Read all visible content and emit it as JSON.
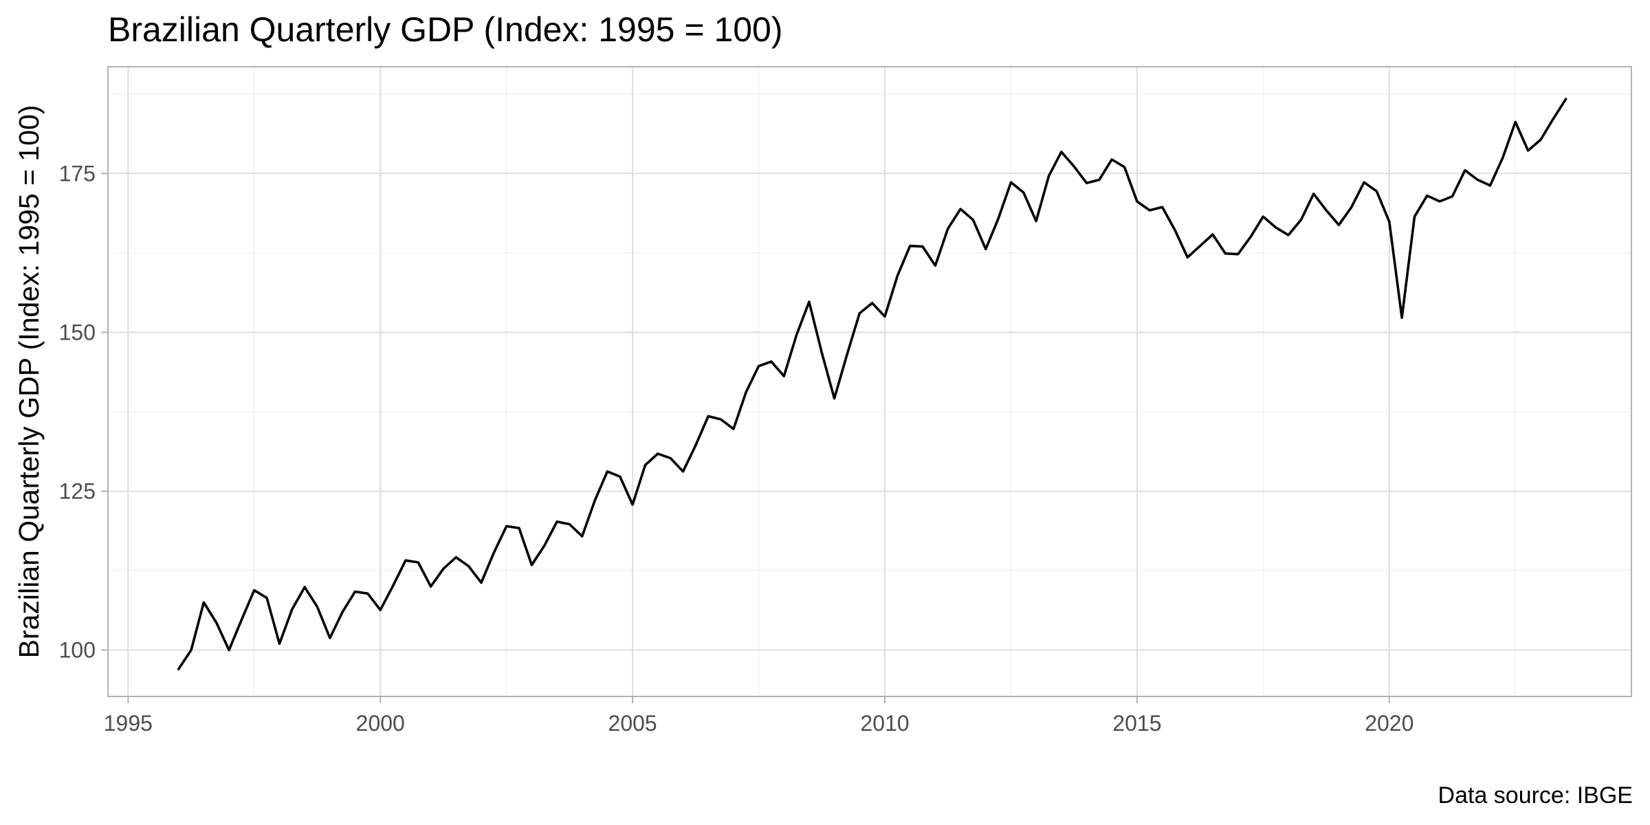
{
  "chart_data": {
    "type": "line",
    "title": "Brazilian Quarterly GDP (Index: 1995 = 100)",
    "xlabel": "",
    "ylabel": "Brazilian Quarterly GDP (Index: 1995 = 100)",
    "caption": "Data source: IBGE",
    "xlim": [
      1994.6,
      2024.8
    ],
    "ylim": [
      92.7,
      191.8
    ],
    "x_ticks": [
      1995,
      2000,
      2005,
      2010,
      2015,
      2020
    ],
    "x_tick_labels": [
      "1995",
      "2000",
      "2005",
      "2010",
      "2015",
      "2020"
    ],
    "y_ticks": [
      100,
      125,
      150,
      175
    ],
    "y_tick_labels": [
      "100",
      "125",
      "150",
      "175"
    ],
    "grid": true,
    "legend": "none",
    "series": [
      {
        "color": "#000000",
        "x": [
          1996.0,
          1996.25,
          1996.5,
          1996.75,
          1997.0,
          1997.25,
          1997.5,
          1997.75,
          1998.0,
          1998.25,
          1998.5,
          1998.75,
          1999.0,
          1999.25,
          1999.5,
          1999.75,
          2000.0,
          2000.25,
          2000.5,
          2000.75,
          2001.0,
          2001.25,
          2001.5,
          2001.75,
          2002.0,
          2002.25,
          2002.5,
          2002.75,
          2003.0,
          2003.25,
          2003.5,
          2003.75,
          2004.0,
          2004.25,
          2004.5,
          2004.75,
          2005.0,
          2005.25,
          2005.5,
          2005.75,
          2006.0,
          2006.25,
          2006.5,
          2006.75,
          2007.0,
          2007.25,
          2007.5,
          2007.75,
          2008.0,
          2008.25,
          2008.5,
          2008.75,
          2009.0,
          2009.25,
          2009.5,
          2009.75,
          2010.0,
          2010.25,
          2010.5,
          2010.75,
          2011.0,
          2011.25,
          2011.5,
          2011.75,
          2012.0,
          2012.25,
          2012.5,
          2012.75,
          2013.0,
          2013.25,
          2013.5,
          2013.75,
          2014.0,
          2014.25,
          2014.5,
          2014.75,
          2015.0,
          2015.25,
          2015.5,
          2015.75,
          2016.0,
          2016.25,
          2016.5,
          2016.75,
          2017.0,
          2017.25,
          2017.5,
          2017.75,
          2018.0,
          2018.25,
          2018.5,
          2018.75,
          2019.0,
          2019.25,
          2019.5,
          2019.75,
          2020.0,
          2020.25,
          2020.5,
          2020.75,
          2021.0,
          2021.25,
          2021.5,
          2021.75,
          2022.0,
          2022.25,
          2022.5,
          2022.75,
          2023.0,
          2023.25,
          2023.5
        ],
        "y": [
          97.0,
          100.0,
          107.5,
          104.3,
          100.0,
          104.8,
          109.4,
          108.2,
          101.0,
          106.4,
          109.9,
          106.8,
          101.9,
          106.0,
          109.2,
          108.9,
          106.3,
          110.1,
          114.1,
          113.8,
          110.0,
          112.8,
          114.6,
          113.2,
          110.6,
          115.3,
          119.5,
          119.2,
          113.4,
          116.4,
          120.2,
          119.8,
          117.9,
          123.5,
          128.1,
          127.3,
          122.9,
          129.1,
          130.9,
          130.2,
          128.1,
          132.2,
          136.8,
          136.3,
          134.8,
          140.6,
          144.7,
          145.4,
          143.1,
          149.6,
          154.8,
          146.8,
          139.6,
          146.5,
          153.0,
          154.6,
          152.5,
          158.9,
          163.6,
          163.5,
          160.5,
          166.3,
          169.4,
          167.7,
          163.1,
          167.9,
          173.6,
          172.0,
          167.5,
          174.6,
          178.4,
          176.1,
          173.5,
          174.0,
          177.2,
          176.0,
          170.6,
          169.2,
          169.7,
          166.1,
          161.8,
          163.6,
          165.4,
          162.4,
          162.3,
          165.0,
          168.2,
          166.5,
          165.3,
          167.7,
          171.8,
          169.2,
          166.9,
          169.7,
          173.6,
          172.2,
          167.4,
          152.3,
          168.2,
          171.5,
          170.6,
          171.4,
          175.5,
          174.0,
          173.1,
          177.5,
          183.1,
          178.6,
          180.3,
          183.6,
          186.7
        ]
      }
    ]
  }
}
